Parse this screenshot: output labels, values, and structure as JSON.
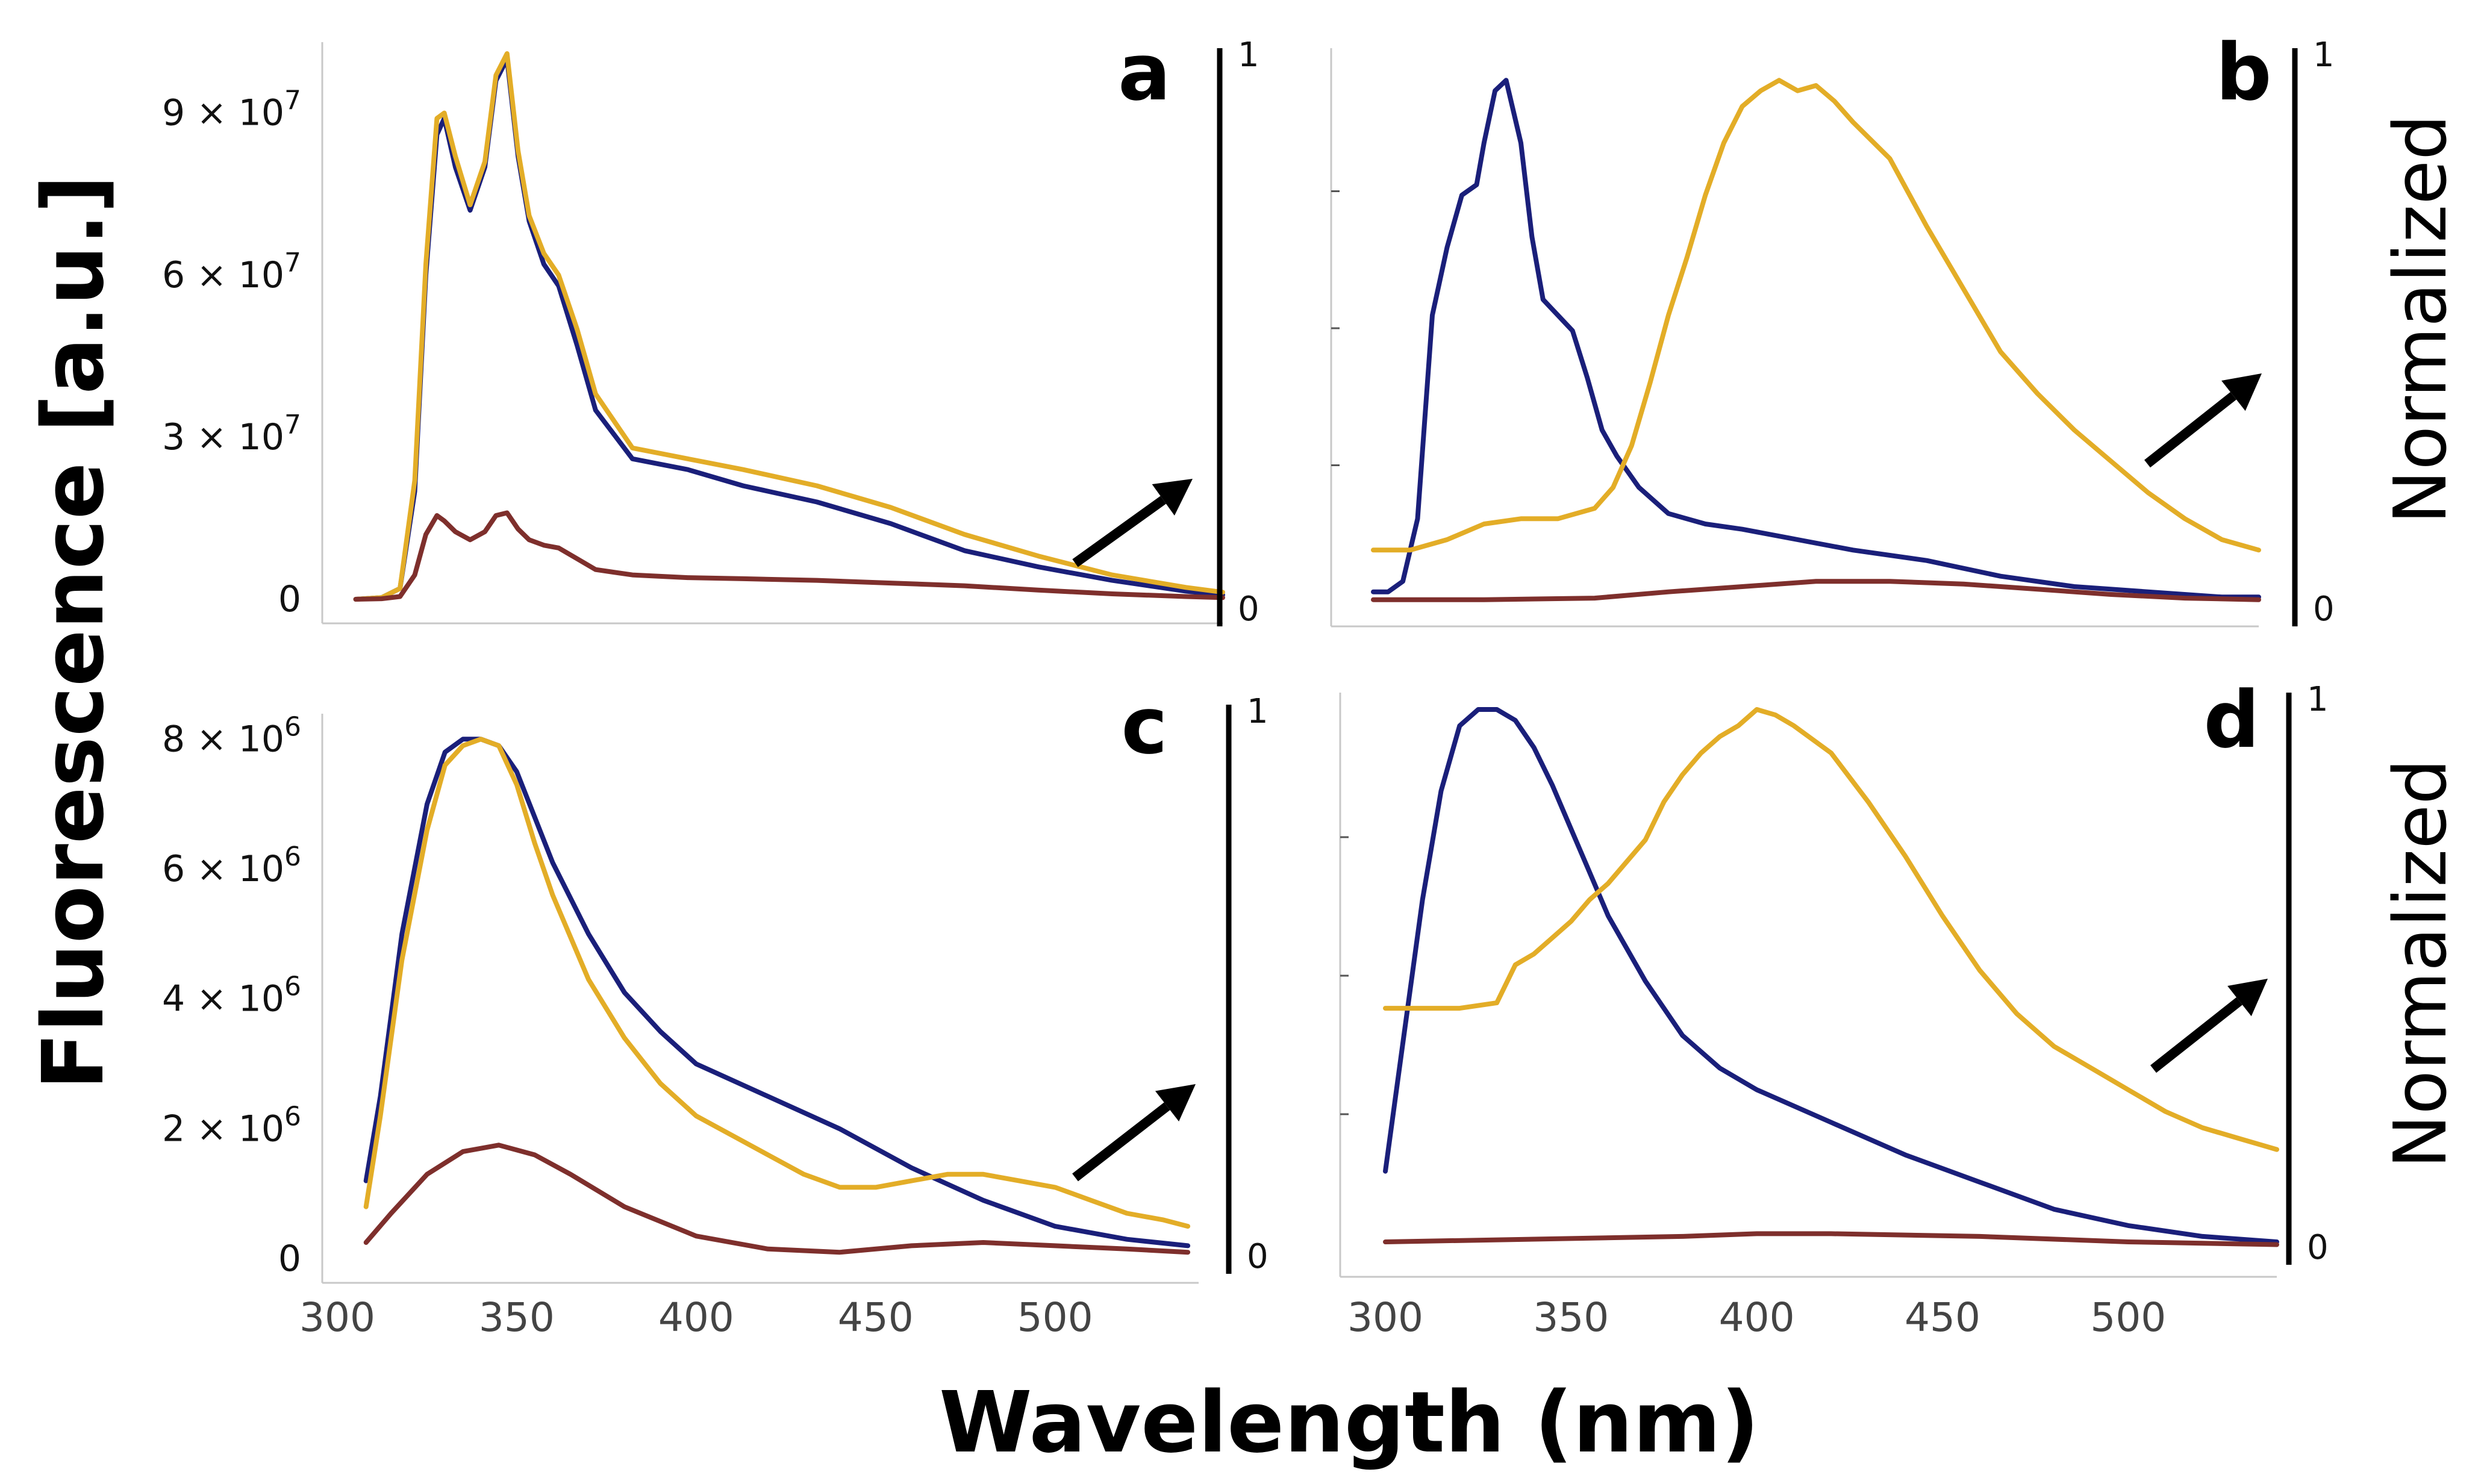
{
  "chart_data": [
    {
      "id": "a",
      "type": "line",
      "panel_label": "a",
      "xlim": [
        300,
        540
      ],
      "ylim": [
        0,
        102000000
      ],
      "yticks": [
        {
          "value": 0,
          "label": "0"
        },
        {
          "value": 30000000,
          "base": "3 × 10",
          "exp": "7"
        },
        {
          "value": 60000000,
          "base": "6 × 10",
          "exp": "7"
        },
        {
          "value": 90000000,
          "base": "9 × 10",
          "exp": "7"
        }
      ],
      "norm_ticks": {
        "low": "0",
        "high": "1"
      },
      "series": [
        {
          "name": "blue",
          "color": "#1a1f7a",
          "x": [
            305,
            312,
            317,
            321,
            324,
            327,
            329,
            332,
            336,
            340,
            343,
            346,
            349,
            352,
            356,
            360,
            365,
            370,
            380,
            395,
            410,
            430,
            450,
            470,
            490,
            510,
            530,
            540
          ],
          "y": [
            0,
            300000,
            2000000,
            20000000,
            60000000,
            86000000,
            89000000,
            80000000,
            72000000,
            80000000,
            96000000,
            100000000,
            82000000,
            70000000,
            62000000,
            58000000,
            47000000,
            35000000,
            26000000,
            24000000,
            21000000,
            18000000,
            14000000,
            9000000,
            6000000,
            3500000,
            1500000,
            800000
          ]
        },
        {
          "name": "orange",
          "color": "#e3ad27",
          "x": [
            305,
            312,
            317,
            321,
            324,
            327,
            329,
            332,
            336,
            340,
            343,
            346,
            349,
            352,
            356,
            360,
            365,
            370,
            380,
            395,
            410,
            430,
            450,
            470,
            490,
            510,
            530,
            540
          ],
          "y": [
            0,
            300000,
            2000000,
            22000000,
            62000000,
            89000000,
            90000000,
            82000000,
            73000000,
            81000000,
            97000000,
            101000000,
            83000000,
            71000000,
            64000000,
            60000000,
            50000000,
            38000000,
            28000000,
            26000000,
            24000000,
            21000000,
            17000000,
            12000000,
            8000000,
            4500000,
            2200000,
            1300000
          ]
        },
        {
          "name": "maroon",
          "color": "#7e2f2c",
          "x": [
            305,
            312,
            317,
            321,
            324,
            327,
            329,
            332,
            336,
            340,
            343,
            346,
            349,
            352,
            356,
            360,
            365,
            370,
            380,
            395,
            410,
            430,
            450,
            470,
            490,
            510,
            530,
            540
          ],
          "y": [
            0,
            100000,
            500000,
            4500000,
            12000000,
            15500000,
            14500000,
            12500000,
            11000000,
            12500000,
            15500000,
            16000000,
            13000000,
            11000000,
            10000000,
            9500000,
            7500000,
            5500000,
            4500000,
            4000000,
            3800000,
            3500000,
            3000000,
            2500000,
            1700000,
            1000000,
            500000,
            300000
          ]
        }
      ]
    },
    {
      "id": "b",
      "type": "line",
      "panel_label": "b",
      "xlim": [
        300,
        540
      ],
      "ylim": [
        0,
        1.05
      ],
      "yticks": [],
      "norm_ticks": {
        "low": "0",
        "high": "1"
      },
      "side_label": "Normalized",
      "series": [
        {
          "name": "blue",
          "color": "#1a1f7a",
          "x": [
            300,
            304,
            308,
            312,
            316,
            320,
            324,
            328,
            330,
            333,
            336,
            340,
            343,
            346,
            350,
            354,
            358,
            362,
            366,
            372,
            380,
            390,
            400,
            415,
            430,
            450,
            470,
            490,
            510,
            530,
            540
          ],
          "y": [
            0.02,
            0.02,
            0.04,
            0.16,
            0.55,
            0.68,
            0.78,
            0.8,
            0.88,
            0.98,
            1.0,
            0.88,
            0.7,
            0.58,
            0.55,
            0.52,
            0.43,
            0.33,
            0.28,
            0.22,
            0.17,
            0.15,
            0.14,
            0.12,
            0.1,
            0.08,
            0.05,
            0.03,
            0.02,
            0.01,
            0.01
          ]
        },
        {
          "name": "orange",
          "color": "#e3ad27",
          "x": [
            300,
            310,
            320,
            330,
            340,
            350,
            360,
            365,
            370,
            375,
            380,
            385,
            390,
            395,
            400,
            405,
            410,
            415,
            420,
            425,
            430,
            440,
            450,
            460,
            470,
            480,
            490,
            500,
            510,
            520,
            530,
            540
          ],
          "y": [
            0.1,
            0.1,
            0.12,
            0.15,
            0.16,
            0.16,
            0.18,
            0.22,
            0.3,
            0.42,
            0.55,
            0.66,
            0.78,
            0.88,
            0.95,
            0.98,
            1.0,
            0.98,
            0.99,
            0.96,
            0.92,
            0.85,
            0.72,
            0.6,
            0.48,
            0.4,
            0.33,
            0.27,
            0.21,
            0.16,
            0.12,
            0.1
          ]
        },
        {
          "name": "maroon",
          "color": "#7e2f2c",
          "x": [
            300,
            330,
            360,
            380,
            400,
            420,
            440,
            460,
            480,
            500,
            520,
            540
          ],
          "y": [
            0.005,
            0.005,
            0.008,
            0.02,
            0.03,
            0.04,
            0.04,
            0.035,
            0.025,
            0.015,
            0.008,
            0.005
          ]
        }
      ]
    },
    {
      "id": "c",
      "type": "line",
      "panel_label": "c",
      "xlim": [
        300,
        540
      ],
      "ylim": [
        0,
        8300000
      ],
      "yticks": [
        {
          "value": 0,
          "label": "0"
        },
        {
          "value": 2000000,
          "base": "2 × 10",
          "exp": "6"
        },
        {
          "value": 4000000,
          "base": "4 × 10",
          "exp": "6"
        },
        {
          "value": 6000000,
          "base": "6 × 10",
          "exp": "6"
        },
        {
          "value": 8000000,
          "base": "8 × 10",
          "exp": "6"
        }
      ],
      "norm_ticks": {
        "low": "0",
        "high": "1"
      },
      "xticks": [
        300,
        350,
        400,
        450,
        500
      ],
      "series": [
        {
          "name": "blue",
          "color": "#1a1f7a",
          "x": [
            308,
            312,
            318,
            325,
            330,
            335,
            340,
            345,
            350,
            355,
            360,
            370,
            380,
            390,
            400,
            420,
            440,
            460,
            480,
            500,
            520,
            537
          ],
          "y": [
            1200000,
            2500000,
            5000000,
            7000000,
            7800000,
            8000000,
            8000000,
            7900000,
            7500000,
            6800000,
            6100000,
            5000000,
            4100000,
            3500000,
            3000000,
            2500000,
            2000000,
            1400000,
            900000,
            500000,
            300000,
            200000
          ]
        },
        {
          "name": "orange",
          "color": "#e3ad27",
          "x": [
            308,
            312,
            318,
            325,
            330,
            335,
            340,
            345,
            350,
            355,
            360,
            370,
            380,
            390,
            400,
            410,
            420,
            430,
            440,
            450,
            460,
            470,
            480,
            490,
            500,
            510,
            520,
            530,
            537
          ],
          "y": [
            800000,
            2200000,
            4600000,
            6600000,
            7600000,
            7900000,
            8000000,
            7900000,
            7300000,
            6400000,
            5600000,
            4300000,
            3400000,
            2700000,
            2200000,
            1900000,
            1600000,
            1300000,
            1100000,
            1100000,
            1200000,
            1300000,
            1300000,
            1200000,
            1100000,
            900000,
            700000,
            600000,
            500000
          ]
        },
        {
          "name": "maroon",
          "color": "#7e2f2c",
          "x": [
            308,
            315,
            325,
            335,
            345,
            355,
            365,
            380,
            400,
            420,
            440,
            460,
            480,
            500,
            520,
            537
          ],
          "y": [
            250000,
            700000,
            1300000,
            1650000,
            1750000,
            1600000,
            1300000,
            800000,
            350000,
            150000,
            100000,
            200000,
            250000,
            200000,
            150000,
            100000
          ]
        }
      ]
    },
    {
      "id": "d",
      "type": "line",
      "panel_label": "d",
      "xlim": [
        300,
        540
      ],
      "ylim": [
        0,
        1.02
      ],
      "yticks": [],
      "norm_ticks": {
        "low": "0",
        "high": "1"
      },
      "side_label": "Normalized",
      "xticks": [
        300,
        350,
        400,
        450,
        500
      ],
      "series": [
        {
          "name": "blue",
          "color": "#1a1f7a",
          "x": [
            300,
            305,
            310,
            315,
            320,
            325,
            330,
            335,
            340,
            345,
            350,
            355,
            360,
            370,
            380,
            390,
            400,
            420,
            440,
            460,
            480,
            500,
            520,
            540
          ],
          "y": [
            0.15,
            0.4,
            0.65,
            0.85,
            0.97,
            1.0,
            1.0,
            0.98,
            0.93,
            0.86,
            0.78,
            0.7,
            0.62,
            0.5,
            0.4,
            0.34,
            0.3,
            0.24,
            0.18,
            0.13,
            0.08,
            0.05,
            0.03,
            0.02
          ]
        },
        {
          "name": "orange",
          "color": "#e3ad27",
          "x": [
            300,
            310,
            320,
            330,
            335,
            340,
            345,
            350,
            355,
            360,
            365,
            370,
            375,
            380,
            385,
            390,
            395,
            400,
            405,
            410,
            420,
            430,
            440,
            450,
            460,
            470,
            480,
            490,
            500,
            510,
            520,
            530,
            540
          ],
          "y": [
            0.45,
            0.45,
            0.45,
            0.46,
            0.53,
            0.55,
            0.58,
            0.61,
            0.65,
            0.68,
            0.72,
            0.76,
            0.83,
            0.88,
            0.92,
            0.95,
            0.97,
            1.0,
            0.99,
            0.97,
            0.92,
            0.83,
            0.73,
            0.62,
            0.52,
            0.44,
            0.38,
            0.34,
            0.3,
            0.26,
            0.23,
            0.21,
            0.19
          ]
        },
        {
          "name": "maroon",
          "color": "#7e2f2c",
          "x": [
            300,
            340,
            380,
            400,
            420,
            460,
            500,
            540
          ],
          "y": [
            0.02,
            0.025,
            0.03,
            0.035,
            0.035,
            0.03,
            0.02,
            0.015
          ]
        }
      ]
    }
  ],
  "labels": {
    "y_axis": "Fluorescence [a.u.]",
    "x_axis": "Wavelength (nm)",
    "normalized_b": "Normalized",
    "normalized_d": "Normalized"
  }
}
